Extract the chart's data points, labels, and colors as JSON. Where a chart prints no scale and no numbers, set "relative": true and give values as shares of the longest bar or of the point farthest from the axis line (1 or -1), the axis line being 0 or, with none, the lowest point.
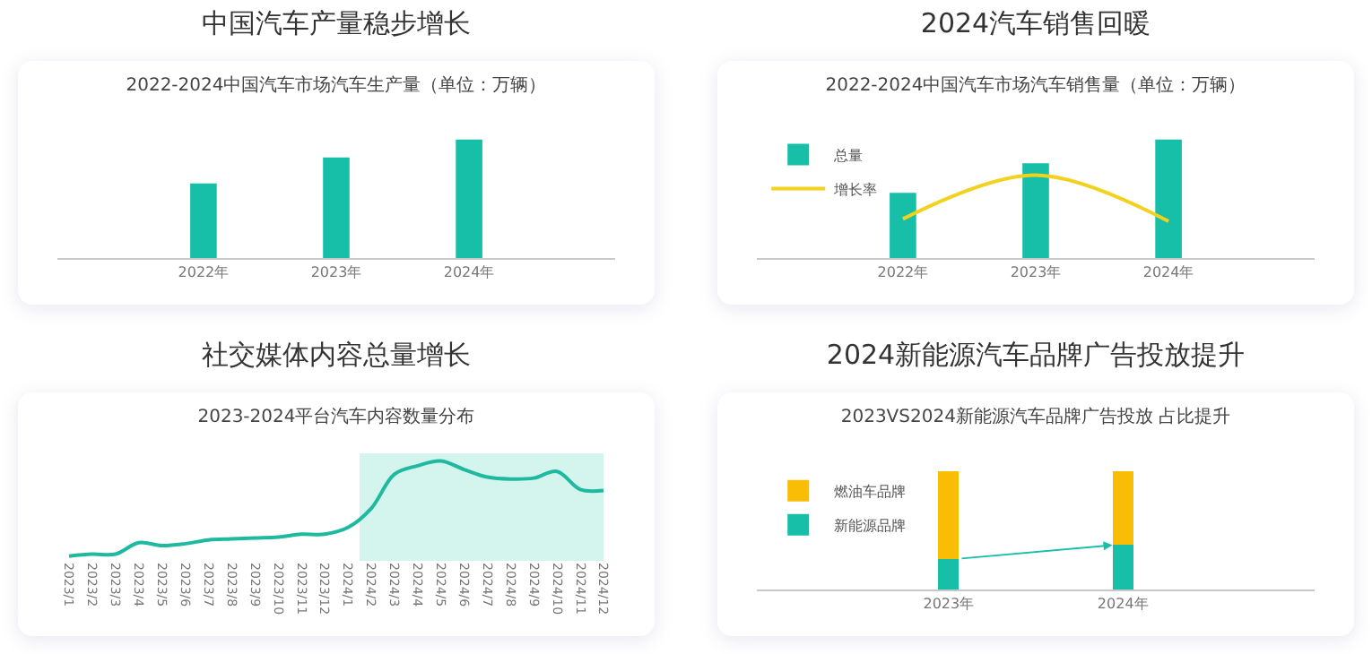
{
  "chart_data": [
    {
      "type": "bar",
      "title": "中国汽车产量稳步增长",
      "subtitle": "2022-2024中国汽车市场汽车生产量（单位：万辆）",
      "relative": true,
      "categories": [
        "2022年",
        "2023年",
        "2024年"
      ],
      "values": [
        0.63,
        0.85,
        1
      ],
      "color": "#17bfa8"
    },
    {
      "type": "bar",
      "title": "2024汽车销售回暖",
      "subtitle": "2022-2024中国汽车市场汽车销售量（单位：万辆）",
      "relative": true,
      "categories": [
        "2022年",
        "2023年",
        "2024年"
      ],
      "legend": "top left",
      "series": [
        {
          "name": "总量",
          "color": "#17bfa8",
          "values": [
            0.55,
            0.8,
            1
          ]
        },
        {
          "name": "增长率",
          "type": "line",
          "color": "#f2d21c",
          "values": [
            0.33,
            0.7,
            0.31
          ]
        }
      ]
    },
    {
      "type": "line",
      "title": "社交媒体内容总量增长",
      "subtitle": "2023-2024平台汽车内容数量分布",
      "relative": true,
      "color": "#1fb99f",
      "categories": [
        "2023/1",
        "2023/2",
        "2023/3",
        "2023/4",
        "2023/5",
        "2023/6",
        "2023/7",
        "2023/8",
        "2023/9",
        "2023/10",
        "2023/11",
        "2023/12",
        "2024/1",
        "2024/2",
        "2024/3",
        "2024/4",
        "2024/5",
        "2024/6",
        "2024/7",
        "2024/8",
        "2024/9",
        "2024/10",
        "2024/11",
        "2024/12"
      ],
      "values": [
        0,
        0.02,
        0.02,
        0.14,
        0.11,
        0.13,
        0.17,
        0.18,
        0.19,
        0.2,
        0.23,
        0.23,
        0.3,
        0.5,
        0.86,
        0.95,
        1,
        0.91,
        0.83,
        0.81,
        0.82,
        0.89,
        0.7,
        0.69
      ],
      "bands": [
        {
          "axis": "x",
          "from": "2024/2",
          "to": "2024/12",
          "color": "#b8ece3"
        }
      ]
    },
    {
      "type": "bar",
      "title": "2024新能源汽车品牌广告投放提升",
      "subtitle": "2023VS2024新能源汽车品牌广告投放 占比提升",
      "relative": true,
      "stacked": true,
      "legend": "left",
      "categories": [
        "2023年",
        "2024年"
      ],
      "series": [
        {
          "name": "新能源品牌",
          "color": "#17bfa8",
          "values": [
            0.26,
            0.375
          ]
        },
        {
          "name": "燃油车品牌",
          "color": "#f9bd05",
          "values": [
            0.74,
            0.625
          ]
        }
      ]
    }
  ]
}
